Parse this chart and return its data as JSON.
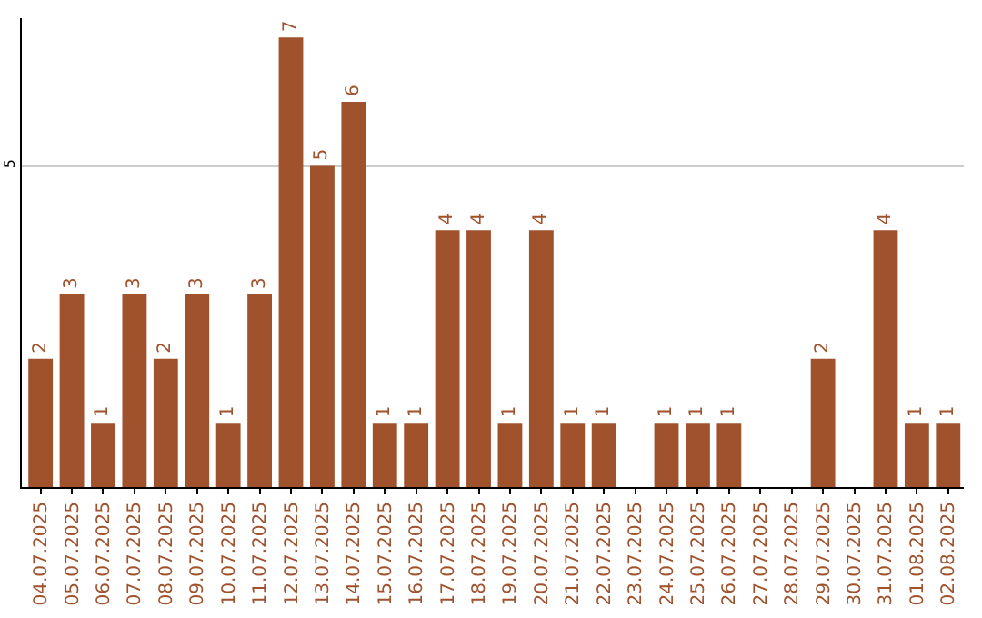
{
  "chart_data": {
    "type": "bar",
    "categories": [
      "04.07.2025",
      "05.07.2025",
      "06.07.2025",
      "07.07.2025",
      "08.07.2025",
      "09.07.2025",
      "10.07.2025",
      "11.07.2025",
      "12.07.2025",
      "13.07.2025",
      "14.07.2025",
      "15.07.2025",
      "16.07.2025",
      "17.07.2025",
      "18.07.2025",
      "19.07.2025",
      "20.07.2025",
      "21.07.2025",
      "22.07.2025",
      "23.07.2025",
      "24.07.2025",
      "25.07.2025",
      "26.07.2025",
      "27.07.2025",
      "28.07.2025",
      "29.07.2025",
      "30.07.2025",
      "31.07.2025",
      "01.08.2025",
      "02.08.2025"
    ],
    "values": [
      2,
      3,
      1,
      3,
      2,
      3,
      1,
      3,
      7,
      5,
      6,
      1,
      1,
      4,
      4,
      1,
      4,
      1,
      1,
      0,
      1,
      1,
      1,
      0,
      0,
      2,
      0,
      4,
      1,
      1
    ],
    "value_labels": [
      "2",
      "3",
      "1",
      "3",
      "2",
      "3",
      "1",
      "3",
      "7",
      "5",
      "6",
      "1",
      "1",
      "4",
      "4",
      "1",
      "4",
      "1",
      "1",
      null,
      "1",
      "1",
      "1",
      null,
      null,
      "2",
      null,
      "4",
      "1",
      "1"
    ],
    "color": "#a0522d",
    "ylim": [
      0,
      7.3
    ],
    "yticks": [
      5
    ],
    "grid": "y"
  }
}
